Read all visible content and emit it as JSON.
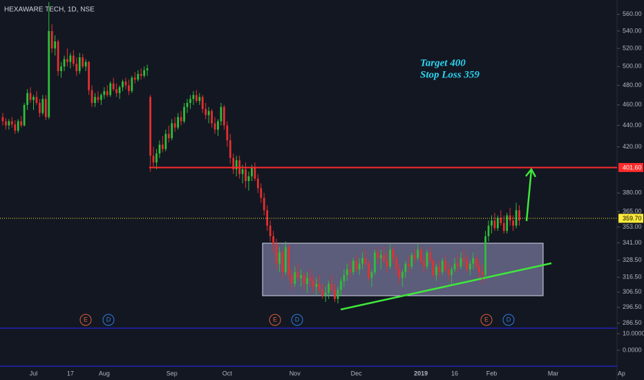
{
  "chart_data": {
    "type": "candlestick",
    "title": "HEXAWARE TECH, 1D, NSE",
    "log_scale": true,
    "up_color": "#2fbf3a",
    "down_color": "#e5302f",
    "xlim": [
      -0.9,
      199.8
    ],
    "ylim": [
      283.4,
      577.6
    ],
    "xticks": [
      {
        "value": 10,
        "label": "Jul"
      },
      {
        "value": 22,
        "label": "17"
      },
      {
        "value": 33,
        "label": "Aug"
      },
      {
        "value": 55,
        "label": "Sep"
      },
      {
        "value": 73,
        "label": "Oct"
      },
      {
        "value": 95,
        "label": "Nov"
      },
      {
        "value": 115,
        "label": "Dec"
      },
      {
        "value": 136,
        "label": "2019"
      },
      {
        "value": 147,
        "label": "16"
      },
      {
        "value": 159,
        "label": "Feb"
      },
      {
        "value": 179,
        "label": "Mar"
      },
      {
        "value": 200,
        "label": "Ap"
      }
    ],
    "yticks": [
      {
        "value": 560,
        "label": "560.00"
      },
      {
        "value": 540,
        "label": "540.00"
      },
      {
        "value": 520,
        "label": "520.00"
      },
      {
        "value": 500,
        "label": "500.00"
      },
      {
        "value": 480,
        "label": "480.00"
      },
      {
        "value": 460,
        "label": "460.00"
      },
      {
        "value": 440,
        "label": "440.00"
      },
      {
        "value": 420,
        "label": "420.00"
      },
      {
        "value": 380,
        "label": "380.00"
      },
      {
        "value": 365,
        "label": "365.00"
      },
      {
        "value": 353,
        "label": "353.00"
      },
      {
        "value": 341,
        "label": "341.00"
      },
      {
        "value": 328.5,
        "label": "328.50"
      },
      {
        "value": 316.5,
        "label": "316.50"
      },
      {
        "value": 306.5,
        "label": "306.50"
      },
      {
        "value": 296.5,
        "label": "296.50"
      },
      {
        "value": 286.5,
        "label": "286.50"
      }
    ],
    "price_lines": [
      {
        "value": 401.6,
        "label": "401.60",
        "color": "#ff2b2b",
        "style": "solid",
        "start": 47.6
      },
      {
        "value": 359.7,
        "label": "359.70",
        "color": "#ffeb3b",
        "style": "dotted",
        "start": -0.9
      }
    ],
    "annotations": [
      "Target 400",
      "Stop Loss 359"
    ],
    "events": [
      "E",
      "D",
      "E",
      "D",
      "E",
      "D"
    ],
    "indicator": {
      "ylim": [
        -8.75,
        12.5
      ],
      "yticks": [
        {
          "value": 10,
          "label": "10.0000"
        },
        {
          "value": 0,
          "label": "0.0000"
        }
      ]
    },
    "candles": [
      [
        448,
        452,
        440,
        444
      ],
      [
        444,
        447,
        436,
        440
      ],
      [
        440,
        446,
        436,
        444
      ],
      [
        444,
        448,
        438,
        441
      ],
      [
        441,
        445,
        432,
        435
      ],
      [
        435,
        446,
        433,
        444
      ],
      [
        444,
        449,
        438,
        440
      ],
      [
        440,
        462,
        439,
        460
      ],
      [
        460,
        476,
        455,
        472
      ],
      [
        472,
        478,
        462,
        465
      ],
      [
        465,
        470,
        455,
        468
      ],
      [
        468,
        474,
        460,
        462
      ],
      [
        462,
        466,
        448,
        452
      ],
      [
        452,
        470,
        450,
        466
      ],
      [
        466,
        470,
        445,
        448
      ],
      [
        448,
        575,
        446,
        540
      ],
      [
        540,
        548,
        515,
        520
      ],
      [
        520,
        535,
        512,
        528
      ],
      [
        528,
        530,
        490,
        495
      ],
      [
        495,
        505,
        488,
        500
      ],
      [
        500,
        512,
        495,
        508
      ],
      [
        508,
        520,
        500,
        505
      ],
      [
        505,
        515,
        498,
        512
      ],
      [
        512,
        518,
        500,
        503
      ],
      [
        503,
        510,
        490,
        495
      ],
      [
        495,
        515,
        492,
        510
      ],
      [
        510,
        514,
        498,
        500
      ],
      [
        500,
        508,
        495,
        505
      ],
      [
        505,
        506,
        470,
        475
      ],
      [
        475,
        480,
        458,
        462
      ],
      [
        462,
        472,
        458,
        468
      ],
      [
        468,
        474,
        462,
        465
      ],
      [
        465,
        472,
        460,
        470
      ],
      [
        470,
        478,
        466,
        474
      ],
      [
        474,
        480,
        468,
        470
      ],
      [
        470,
        484,
        468,
        482
      ],
      [
        482,
        488,
        474,
        476
      ],
      [
        476,
        482,
        468,
        472
      ],
      [
        472,
        480,
        466,
        478
      ],
      [
        478,
        486,
        474,
        484
      ],
      [
        484,
        488,
        476,
        480
      ],
      [
        480,
        486,
        470,
        474
      ],
      [
        474,
        490,
        472,
        488
      ],
      [
        488,
        494,
        482,
        486
      ],
      [
        486,
        496,
        484,
        492
      ],
      [
        492,
        498,
        486,
        490
      ],
      [
        490,
        500,
        488,
        496
      ],
      [
        496,
        502,
        490,
        498
      ],
      [
        468,
        470,
        398,
        412
      ],
      [
        412,
        420,
        402,
        406
      ],
      [
        406,
        418,
        400,
        414
      ],
      [
        414,
        426,
        410,
        422
      ],
      [
        422,
        430,
        415,
        418
      ],
      [
        418,
        436,
        416,
        432
      ],
      [
        432,
        440,
        424,
        428
      ],
      [
        428,
        446,
        426,
        442
      ],
      [
        442,
        448,
        434,
        438
      ],
      [
        438,
        452,
        436,
        448
      ],
      [
        448,
        454,
        440,
        444
      ],
      [
        444,
        462,
        442,
        458
      ],
      [
        458,
        466,
        452,
        462
      ],
      [
        462,
        470,
        456,
        466
      ],
      [
        466,
        474,
        460,
        470
      ],
      [
        470,
        475,
        462,
        464
      ],
      [
        464,
        472,
        460,
        468
      ],
      [
        468,
        470,
        452,
        456
      ],
      [
        456,
        462,
        446,
        450
      ],
      [
        450,
        458,
        442,
        454
      ],
      [
        454,
        456,
        438,
        442
      ],
      [
        442,
        448,
        432,
        436
      ],
      [
        436,
        446,
        430,
        444
      ],
      [
        444,
        462,
        440,
        458
      ],
      [
        458,
        460,
        436,
        440
      ],
      [
        440,
        444,
        420,
        426
      ],
      [
        426,
        432,
        405,
        410
      ],
      [
        410,
        414,
        396,
        400
      ],
      [
        400,
        412,
        394,
        408
      ],
      [
        408,
        412,
        392,
        396
      ],
      [
        396,
        404,
        388,
        400
      ],
      [
        400,
        406,
        384,
        390
      ],
      [
        390,
        398,
        382,
        394
      ],
      [
        394,
        404,
        390,
        402
      ],
      [
        402,
        406,
        390,
        392
      ],
      [
        392,
        396,
        380,
        384
      ],
      [
        384,
        388,
        372,
        376
      ],
      [
        376,
        380,
        362,
        366
      ],
      [
        366,
        370,
        350,
        354
      ],
      [
        354,
        358,
        342,
        346
      ],
      [
        346,
        350,
        334,
        340
      ],
      [
        340,
        344,
        322,
        326
      ],
      [
        326,
        338,
        320,
        334
      ],
      [
        334,
        336,
        316,
        320
      ],
      [
        320,
        342,
        318,
        338
      ],
      [
        338,
        340,
        314,
        318
      ],
      [
        318,
        322,
        308,
        312
      ],
      [
        312,
        324,
        310,
        320
      ],
      [
        320,
        326,
        314,
        316
      ],
      [
        316,
        322,
        310,
        318
      ],
      [
        318,
        320,
        308,
        312
      ],
      [
        312,
        320,
        306,
        316
      ],
      [
        316,
        322,
        310,
        314
      ],
      [
        314,
        318,
        306,
        310
      ],
      [
        310,
        316,
        304,
        312
      ],
      [
        312,
        318,
        306,
        308
      ],
      [
        308,
        312,
        302,
        304
      ],
      [
        304,
        310,
        300,
        306
      ],
      [
        306,
        314,
        302,
        312
      ],
      [
        312,
        318,
        306,
        308
      ],
      [
        308,
        312,
        300,
        302
      ],
      [
        302,
        310,
        299,
        308
      ],
      [
        308,
        316,
        304,
        314
      ],
      [
        314,
        322,
        310,
        318
      ],
      [
        318,
        326,
        314,
        322
      ],
      [
        322,
        328,
        316,
        320
      ],
      [
        320,
        330,
        318,
        328
      ],
      [
        328,
        332,
        320,
        322
      ],
      [
        322,
        330,
        318,
        326
      ],
      [
        326,
        334,
        322,
        330
      ],
      [
        330,
        336,
        324,
        326
      ],
      [
        326,
        328,
        314,
        316
      ],
      [
        316,
        322,
        310,
        320
      ],
      [
        320,
        336,
        318,
        334
      ],
      [
        334,
        338,
        326,
        330
      ],
      [
        330,
        336,
        322,
        332
      ],
      [
        332,
        338,
        326,
        328
      ],
      [
        328,
        334,
        320,
        324
      ],
      [
        324,
        340,
        322,
        336
      ],
      [
        336,
        338,
        326,
        330
      ],
      [
        330,
        332,
        318,
        322
      ],
      [
        322,
        326,
        312,
        316
      ],
      [
        316,
        322,
        310,
        320
      ],
      [
        320,
        328,
        316,
        326
      ],
      [
        326,
        332,
        320,
        324
      ],
      [
        324,
        334,
        322,
        332
      ],
      [
        332,
        336,
        326,
        330
      ],
      [
        330,
        340,
        328,
        336
      ],
      [
        336,
        338,
        326,
        328
      ],
      [
        328,
        332,
        320,
        324
      ],
      [
        324,
        336,
        322,
        334
      ],
      [
        334,
        338,
        326,
        328
      ],
      [
        328,
        330,
        316,
        318
      ],
      [
        318,
        326,
        314,
        324
      ],
      [
        324,
        328,
        316,
        320
      ],
      [
        320,
        330,
        318,
        328
      ],
      [
        328,
        332,
        320,
        322
      ],
      [
        322,
        326,
        314,
        318
      ],
      [
        318,
        324,
        312,
        322
      ],
      [
        322,
        330,
        320,
        326
      ],
      [
        326,
        332,
        320,
        324
      ],
      [
        324,
        334,
        322,
        330
      ],
      [
        330,
        336,
        324,
        328
      ],
      [
        328,
        332,
        320,
        322
      ],
      [
        322,
        328,
        318,
        326
      ],
      [
        326,
        334,
        322,
        330
      ],
      [
        330,
        332,
        322,
        324
      ],
      [
        324,
        328,
        316,
        320
      ],
      [
        320,
        326,
        312,
        318
      ],
      [
        318,
        350,
        316,
        346
      ],
      [
        346,
        358,
        342,
        354
      ],
      [
        354,
        362,
        348,
        358
      ],
      [
        358,
        364,
        350,
        352
      ],
      [
        352,
        362,
        350,
        360
      ],
      [
        360,
        366,
        354,
        356
      ],
      [
        356,
        362,
        348,
        350
      ],
      [
        350,
        364,
        348,
        362
      ],
      [
        362,
        368,
        354,
        358
      ],
      [
        358,
        362,
        350,
        354
      ],
      [
        354,
        372,
        352,
        366
      ],
      [
        366,
        370,
        354,
        358
      ]
    ]
  }
}
